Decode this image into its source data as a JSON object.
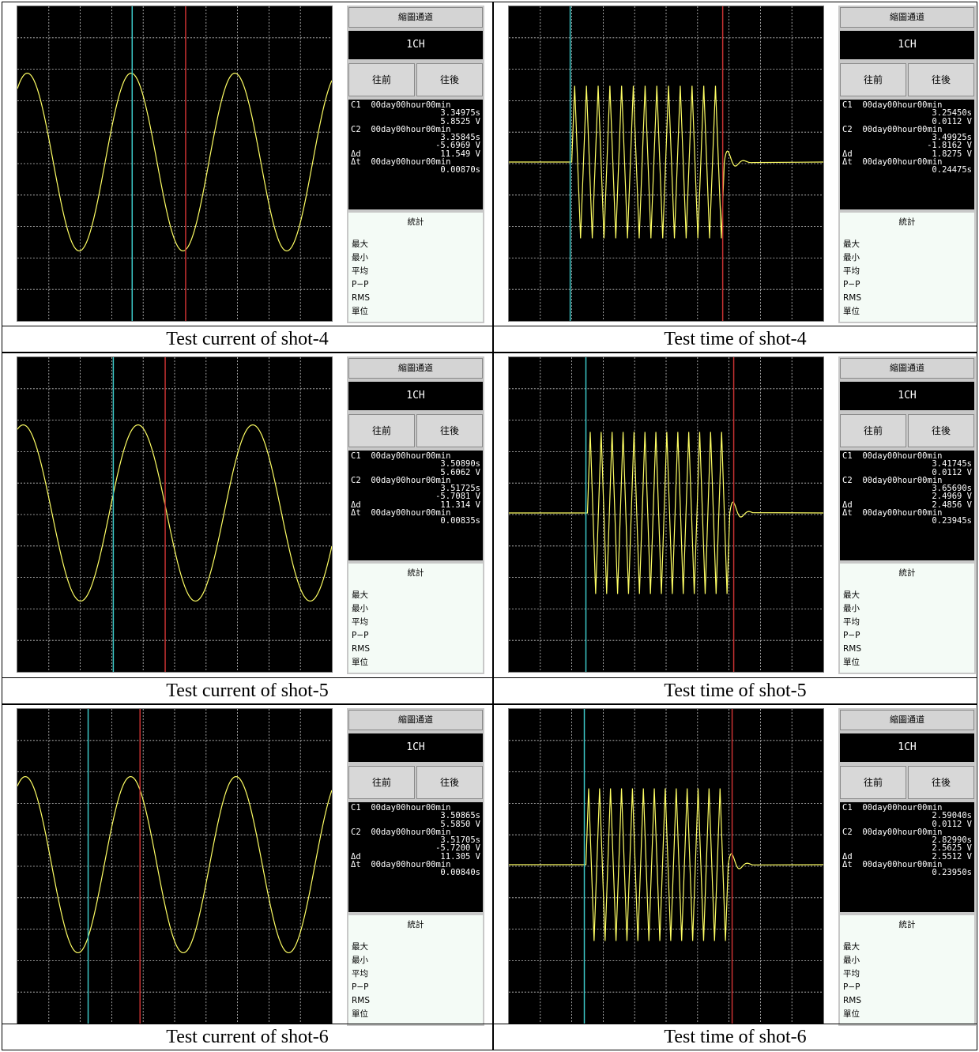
{
  "panel_labels": {
    "title": "縮圖通道",
    "channel": "1CH",
    "prev": "往前",
    "next": "往後",
    "stats_title": "統計",
    "stats": [
      "最大",
      "最小",
      "平均",
      "P−P",
      "RMS",
      "單位"
    ]
  },
  "colors": {
    "screen": "#000000",
    "trace": "#ffff64",
    "cursor_c1": "#3cc8c8",
    "cursor_c2": "#c83232",
    "grid": "#c8c8c8"
  },
  "shots": [
    {
      "current": {
        "caption": "Test current of shot-4",
        "readout": {
          "c1_label": "C1",
          "c1_date": "00day00hour00min",
          "c1_time": "3.34975s",
          "c1_value": "5.8525 V",
          "c2_label": "C2",
          "c2_date": "00day00hour00min",
          "c2_time": "3.35845s",
          "c2_value": "-5.6969 V",
          "dd_label": "Δd",
          "dd_value": "11.549 V",
          "dt_label": "Δt",
          "dt_date": "00day00hour00min",
          "dt_value": "0.00870s"
        }
      },
      "time": {
        "caption": "Test time of shot-4",
        "readout": {
          "c1_label": "C1",
          "c1_date": "00day00hour00min",
          "c1_time": "3.25450s",
          "c1_value": "0.0112 V",
          "c2_label": "C2",
          "c2_date": "00day00hour00min",
          "c2_time": "3.49925s",
          "c2_value": "-1.8162 V",
          "dd_label": "Δd",
          "dd_value": "1.8275 V",
          "dt_label": "Δt",
          "dt_date": "00day00hour00min",
          "dt_value": "0.24475s"
        }
      }
    },
    {
      "current": {
        "caption": "Test current of shot-5",
        "readout": {
          "c1_label": "C1",
          "c1_date": "00day00hour00min",
          "c1_time": "3.50890s",
          "c1_value": "5.6062 V",
          "c2_label": "C2",
          "c2_date": "00day00hour00min",
          "c2_time": "3.51725s",
          "c2_value": "-5.7081 V",
          "dd_label": "Δd",
          "dd_value": "11.314 V",
          "dt_label": "Δt",
          "dt_date": "00day00hour00min",
          "dt_value": "0.00835s"
        }
      },
      "time": {
        "caption": "Test time of shot-5",
        "readout": {
          "c1_label": "C1",
          "c1_date": "00day00hour00min",
          "c1_time": "3.41745s",
          "c1_value": "0.0112 V",
          "c2_label": "C2",
          "c2_date": "00day00hour00min",
          "c2_time": "3.65690s",
          "c2_value": "2.4969 V",
          "dd_label": "Δd",
          "dd_value": "2.4856 V",
          "dt_label": "Δt",
          "dt_date": "00day00hour00min",
          "dt_value": "0.23945s"
        }
      }
    },
    {
      "current": {
        "caption": "Test current of shot-6",
        "readout": {
          "c1_label": "C1",
          "c1_date": "00day00hour00min",
          "c1_time": "3.50865s",
          "c1_value": "5.5850 V",
          "c2_label": "C2",
          "c2_date": "00day00hour00min",
          "c2_time": "3.51705s",
          "c2_value": "-5.7200 V",
          "dd_label": "Δd",
          "dd_value": "11.305 V",
          "dt_label": "Δt",
          "dt_date": "00day00hour00min",
          "dt_value": "0.00840s"
        }
      },
      "time": {
        "caption": "Test time of shot-6",
        "readout": {
          "c1_label": "C1",
          "c1_date": "00day00hour00min",
          "c1_time": "2.59040s",
          "c1_value": "0.0112 V",
          "c2_label": "C2",
          "c2_date": "00day00hour00min",
          "c2_time": "2.82990s",
          "c2_value": "2.5625 V",
          "dd_label": "Δd",
          "dd_value": "2.5512 V",
          "dt_label": "Δt",
          "dt_date": "00day00hour00min",
          "dt_value": "0.23950s"
        }
      }
    }
  ]
}
